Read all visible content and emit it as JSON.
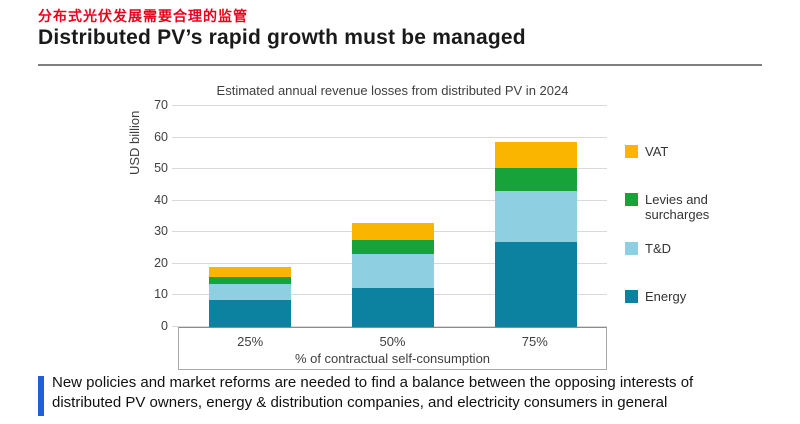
{
  "header": {
    "subtitle_zh": "分布式光伏发展需要合理的监管",
    "title": "Distributed PV’s rapid growth must be managed"
  },
  "chart_data": {
    "type": "bar",
    "stacked": true,
    "title": "Estimated annual revenue losses from distributed PV in 2024",
    "xlabel": "% of contractual self-consumption",
    "ylabel": "USD billion",
    "categories": [
      "25%",
      "50%",
      "75%"
    ],
    "series": [
      {
        "name": "Energy",
        "color": "#0D81A0",
        "values": [
          8.5,
          12.5,
          27
        ]
      },
      {
        "name": "T&D",
        "color": "#8FCFE2",
        "values": [
          5,
          10.5,
          16
        ]
      },
      {
        "name": "Levies and surcharges",
        "color": "#17A33A",
        "values": [
          2.5,
          4.5,
          7.5
        ]
      },
      {
        "name": "VAT",
        "color": "#F9B500",
        "values": [
          3,
          5.5,
          8
        ]
      }
    ],
    "totals": [
      19,
      33,
      58.5
    ],
    "ylim": [
      0,
      70
    ],
    "yticks": [
      0,
      10,
      20,
      30,
      40,
      50,
      60,
      70
    ],
    "grid": "horizontal",
    "legend_position": "right",
    "legend_order": [
      "VAT",
      "Levies and surcharges",
      "T&D",
      "Energy"
    ]
  },
  "callout": {
    "line1": "New policies and market reforms are needed to find a balance between the opposing interests of",
    "line2": "distributed PV owners, energy & distribution companies, and electricity consumers in general",
    "accent_color": "#1F5FD8"
  },
  "colors": {
    "title_red": "#E8001A",
    "gridline": "#D9D9D9",
    "divider_gray": "#7F7F7F"
  }
}
